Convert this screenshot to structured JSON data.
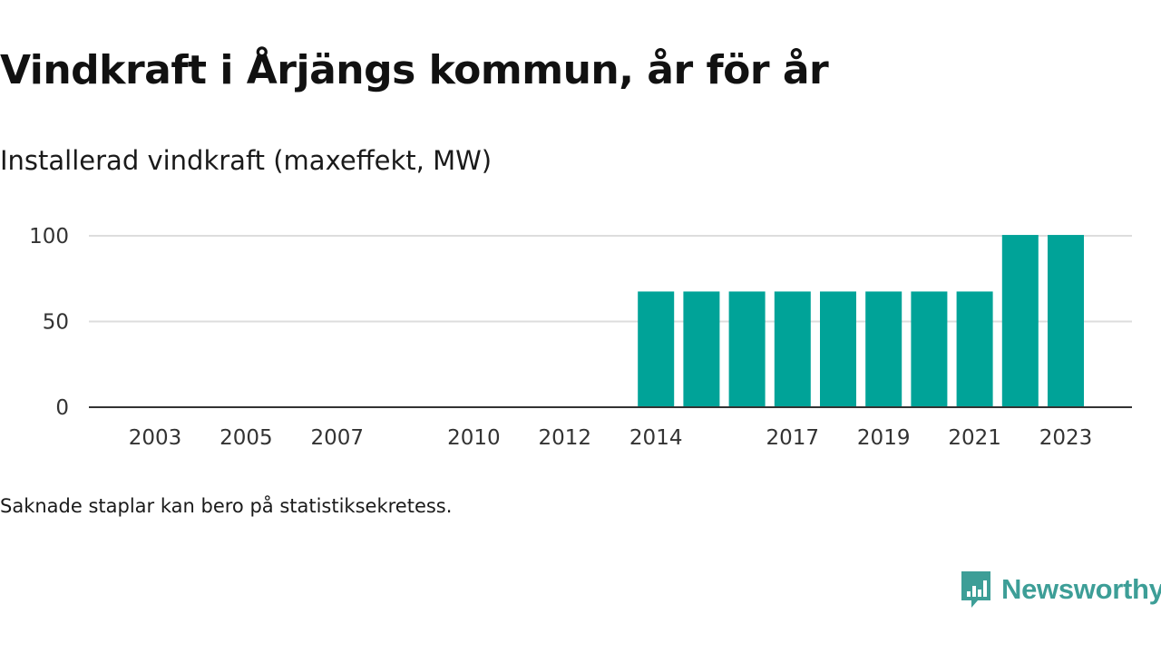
{
  "title": "Vindkraft i Årjängs kommun, år för år",
  "subtitle": "Installerad vindkraft (maxeffekt, MW)",
  "note": "Saknade staplar kan bero på statistiksekretess.",
  "brand": {
    "name": "Newsworthy",
    "icon": "newsworthy-logo-icon",
    "color": "#3d9e97"
  },
  "colors": {
    "bar": "#00a398",
    "grid": "#dddddd",
    "axis": "#333333"
  },
  "chart_data": {
    "type": "bar",
    "title": "Vindkraft i Årjängs kommun, år för år",
    "subtitle": "Installerad vindkraft (maxeffekt, MW)",
    "x": [
      2003,
      2004,
      2005,
      2006,
      2007,
      2008,
      2009,
      2010,
      2011,
      2012,
      2013,
      2014,
      2015,
      2016,
      2017,
      2018,
      2019,
      2020,
      2021,
      2022,
      2023
    ],
    "values": [
      0,
      0,
      0,
      0,
      0,
      0,
      0,
      0,
      0,
      0,
      0,
      67.5,
      67.5,
      67.5,
      67.5,
      67.5,
      67.5,
      67.5,
      67.5,
      100.5,
      100.5
    ],
    "x_tick_labels": [
      "2003",
      "2005",
      "2007",
      "2010",
      "2012",
      "2014",
      "2017",
      "2019",
      "2021",
      "2023"
    ],
    "y_ticks": [
      0,
      50,
      100
    ],
    "ylim": [
      0,
      100
    ],
    "grid": true
  }
}
